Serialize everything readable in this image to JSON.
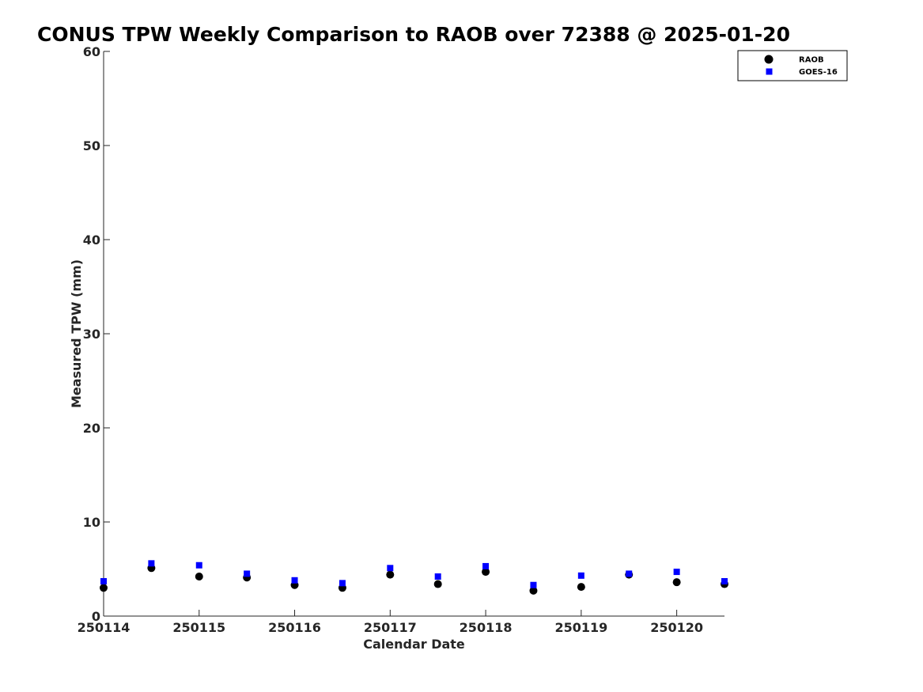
{
  "chart_data": {
    "type": "scatter",
    "title": "CONUS TPW Weekly Comparison to RAOB over 72388 @ 2025-01-20",
    "xlabel": "Calendar Date",
    "ylabel": "Measured TPW (mm)",
    "xlim": [
      250114,
      250120.5
    ],
    "ylim": [
      0,
      60
    ],
    "x_ticks": [
      250114,
      250115,
      250116,
      250117,
      250118,
      250119,
      250120
    ],
    "x_tick_labels": [
      "250114",
      "250115",
      "250116",
      "250117",
      "250118",
      "250119",
      "250120"
    ],
    "y_ticks": [
      0,
      10,
      20,
      30,
      40,
      50,
      60
    ],
    "y_tick_labels": [
      "0",
      "10",
      "20",
      "30",
      "40",
      "50",
      "60"
    ],
    "grid": false,
    "legend_position": "top-right",
    "x": [
      250114,
      250114.5,
      250115,
      250115.5,
      250116,
      250116.5,
      250117,
      250117.5,
      250118,
      250118.5,
      250119,
      250119.5,
      250120,
      250120.5
    ],
    "series": [
      {
        "name": "RAOB",
        "marker": "circle",
        "color": "#000000",
        "values": [
          3.0,
          5.1,
          4.2,
          4.1,
          3.3,
          3.0,
          4.4,
          3.4,
          4.7,
          2.7,
          3.1,
          4.4,
          3.6,
          3.4
        ]
      },
      {
        "name": "GOES-16",
        "marker": "square",
        "color": "#0000ff",
        "values": [
          3.7,
          5.6,
          5.4,
          4.5,
          3.8,
          3.5,
          5.1,
          4.2,
          5.3,
          3.3,
          4.3,
          4.5,
          4.7,
          3.7
        ]
      }
    ]
  }
}
